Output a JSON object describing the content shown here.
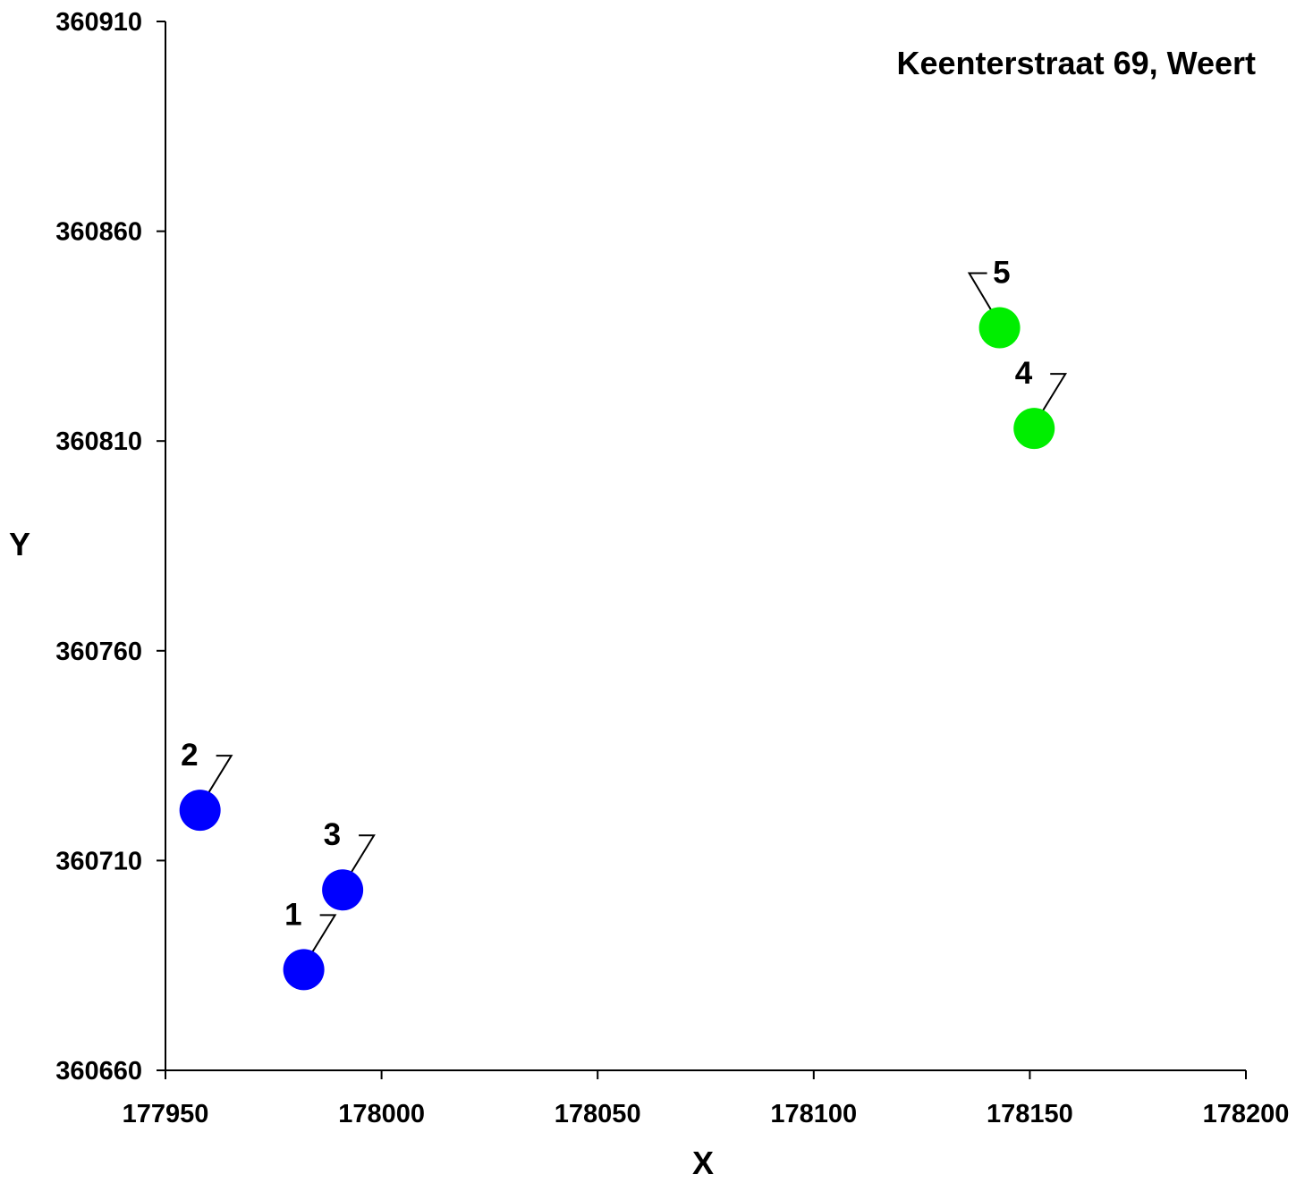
{
  "chart_data": {
    "type": "scatter",
    "title": "Keenterstraat 69, Weert",
    "xlabel": "X",
    "ylabel": "Y",
    "xlim": [
      177950,
      178200
    ],
    "ylim": [
      360660,
      360910
    ],
    "xticks": [
      "177950",
      "178000",
      "178050",
      "178100",
      "178150",
      "178200"
    ],
    "yticks": [
      "360660",
      "360710",
      "360760",
      "360810",
      "360860",
      "360910"
    ],
    "grid": false,
    "series": [
      {
        "color": "#0000ff",
        "points": [
          {
            "label": "1",
            "x": 177982,
            "y": 360684
          },
          {
            "label": "2",
            "x": 177958,
            "y": 360722
          },
          {
            "label": "3",
            "x": 177991,
            "y": 360703
          }
        ]
      },
      {
        "color": "#00ee00",
        "points": [
          {
            "label": "4",
            "x": 178151,
            "y": 360813
          },
          {
            "label": "5",
            "x": 178143,
            "y": 360837
          }
        ]
      }
    ]
  }
}
